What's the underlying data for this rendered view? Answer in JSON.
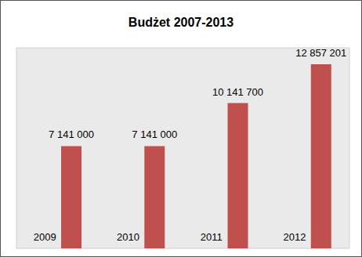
{
  "chart_data": {
    "type": "bar",
    "title": "Budżet 2007-2013",
    "categories": [
      null,
      null,
      null,
      null
    ],
    "series": [
      {
        "color": "#4f81bd",
        "values": [
          2009,
          2010,
          2011,
          2012
        ]
      },
      {
        "color": "#c0504d",
        "values": [
          7141000,
          7141000,
          10141700,
          12857201
        ],
        "value_labels": [
          "7 141 000",
          "7 141 000",
          "10 141 700",
          "12 857 201"
        ]
      }
    ],
    "ylim": [
      0,
      14000000
    ],
    "grid": false,
    "data_labels": true,
    "tick_labels": false
  }
}
